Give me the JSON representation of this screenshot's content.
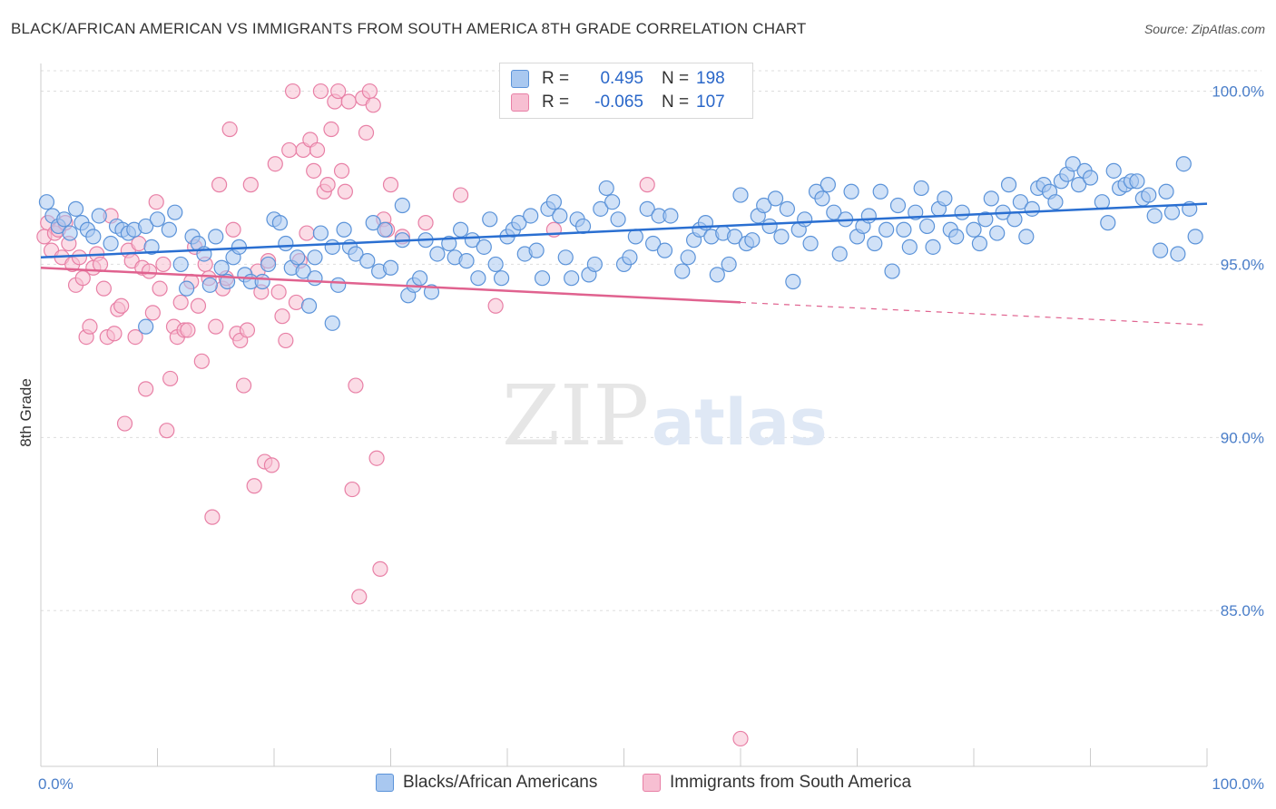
{
  "header": {
    "title": "BLACK/AFRICAN AMERICAN VS IMMIGRANTS FROM SOUTH AMERICA 8TH GRADE CORRELATION CHART",
    "source": "Source: ZipAtlas.com"
  },
  "watermark": {
    "zip": "ZIP",
    "atlas": "atlas"
  },
  "legend": {
    "rows": [
      {
        "r_label": "R =",
        "r_value": "0.495",
        "n_label": "N =",
        "n_value": "198"
      },
      {
        "r_label": "R =",
        "r_value": "-0.065",
        "n_label": "N =",
        "n_value": "107"
      }
    ]
  },
  "bottom_legend": [
    "Blacks/African Americans",
    "Immigrants from South America"
  ],
  "colors": {
    "blue_fill": "#a9c8f0",
    "blue_stroke": "#5b93d9",
    "blue_line": "#2a6fd1",
    "pink_fill": "#f7bfd2",
    "pink_stroke": "#e880a6",
    "pink_line": "#e0628f",
    "grid": "#dddddd",
    "tick_text": "#4a7ec9"
  },
  "chart_data": {
    "type": "scatter",
    "title": "BLACK/AFRICAN AMERICAN VS IMMIGRANTS FROM SOUTH AMERICA 8TH GRADE CORRELATION CHART",
    "ylabel": "8th Grade",
    "xlabel": "",
    "xlim": [
      0,
      100
    ],
    "ylim": [
      80.5,
      100.8
    ],
    "x_tick_labels": [
      "0.0%",
      "100.0%"
    ],
    "y_ticks": [
      85,
      90,
      95,
      100
    ],
    "y_tick_labels": [
      "85.0%",
      "90.0%",
      "95.0%",
      "100.0%"
    ],
    "grid": true,
    "series": [
      {
        "name": "Blacks/African Americans",
        "r": 0.495,
        "n": 198,
        "trend": {
          "x": [
            0,
            100
          ],
          "y": [
            95.2,
            96.75
          ]
        },
        "points": [
          [
            0.5,
            96.8
          ],
          [
            1,
            96.4
          ],
          [
            1.5,
            96.1
          ],
          [
            2,
            96.3
          ],
          [
            2.5,
            95.9
          ],
          [
            3,
            96.6
          ],
          [
            3.5,
            96.2
          ],
          [
            4,
            96.0
          ],
          [
            4.5,
            95.8
          ],
          [
            5,
            96.4
          ],
          [
            6,
            95.6
          ],
          [
            6.5,
            96.1
          ],
          [
            7,
            96.0
          ],
          [
            7.5,
            95.9
          ],
          [
            8,
            96.0
          ],
          [
            9,
            96.1
          ],
          [
            9,
            93.2
          ],
          [
            9.5,
            95.5
          ],
          [
            10,
            96.3
          ],
          [
            11,
            96.0
          ],
          [
            11.5,
            96.5
          ],
          [
            12,
            95.0
          ],
          [
            12.5,
            94.3
          ],
          [
            13,
            95.8
          ],
          [
            13.5,
            95.6
          ],
          [
            14,
            95.3
          ],
          [
            14.5,
            94.4
          ],
          [
            15,
            95.8
          ],
          [
            15.5,
            94.9
          ],
          [
            16,
            94.5
          ],
          [
            16.5,
            95.2
          ],
          [
            17,
            95.5
          ],
          [
            17.5,
            94.7
          ],
          [
            18,
            94.5
          ],
          [
            19,
            94.5
          ],
          [
            19.5,
            95.0
          ],
          [
            20,
            96.3
          ],
          [
            20.5,
            96.2
          ],
          [
            21,
            95.6
          ],
          [
            21.5,
            94.9
          ],
          [
            22,
            95.2
          ],
          [
            22.5,
            94.8
          ],
          [
            23,
            93.8
          ],
          [
            23.5,
            94.6
          ],
          [
            23.5,
            95.2
          ],
          [
            24,
            95.9
          ],
          [
            25,
            95.5
          ],
          [
            25,
            93.3
          ],
          [
            25.5,
            94.4
          ],
          [
            26,
            96.0
          ],
          [
            26.5,
            95.5
          ],
          [
            27,
            95.3
          ],
          [
            28,
            95.1
          ],
          [
            28.5,
            96.2
          ],
          [
            29,
            94.8
          ],
          [
            29.5,
            96.0
          ],
          [
            30,
            94.9
          ],
          [
            31,
            95.7
          ],
          [
            31,
            96.7
          ],
          [
            31.5,
            94.1
          ],
          [
            32,
            94.4
          ],
          [
            32.5,
            94.6
          ],
          [
            33,
            95.7
          ],
          [
            33.5,
            94.2
          ],
          [
            34,
            95.3
          ],
          [
            35,
            95.6
          ],
          [
            35.5,
            95.2
          ],
          [
            36,
            96.0
          ],
          [
            36.5,
            95.1
          ],
          [
            37,
            95.7
          ],
          [
            37.5,
            94.6
          ],
          [
            38,
            95.5
          ],
          [
            38.5,
            96.3
          ],
          [
            39,
            95.0
          ],
          [
            39.5,
            94.6
          ],
          [
            40,
            95.8
          ],
          [
            40.5,
            96.0
          ],
          [
            41,
            96.2
          ],
          [
            41.5,
            95.3
          ],
          [
            42,
            96.4
          ],
          [
            42.5,
            95.4
          ],
          [
            43,
            94.6
          ],
          [
            43.5,
            96.6
          ],
          [
            44,
            96.8
          ],
          [
            44.5,
            96.4
          ],
          [
            45,
            95.2
          ],
          [
            45.5,
            94.6
          ],
          [
            46,
            96.3
          ],
          [
            46.5,
            96.1
          ],
          [
            47,
            94.7
          ],
          [
            47.5,
            95.0
          ],
          [
            48,
            96.6
          ],
          [
            48.5,
            97.2
          ],
          [
            49,
            96.8
          ],
          [
            49.5,
            96.3
          ],
          [
            50,
            95.0
          ],
          [
            50.5,
            95.2
          ],
          [
            51,
            95.8
          ],
          [
            52,
            96.6
          ],
          [
            52.5,
            95.6
          ],
          [
            53,
            96.4
          ],
          [
            53.5,
            95.4
          ],
          [
            54,
            96.4
          ],
          [
            55,
            94.8
          ],
          [
            55.5,
            95.2
          ],
          [
            56,
            95.7
          ],
          [
            56.5,
            96.0
          ],
          [
            57,
            96.2
          ],
          [
            57.5,
            95.8
          ],
          [
            58,
            94.7
          ],
          [
            58.5,
            95.9
          ],
          [
            59,
            95.0
          ],
          [
            59.5,
            95.8
          ],
          [
            60,
            97.0
          ],
          [
            60.5,
            95.6
          ],
          [
            61,
            95.7
          ],
          [
            61.5,
            96.4
          ],
          [
            62,
            96.7
          ],
          [
            62.5,
            96.1
          ],
          [
            63,
            96.9
          ],
          [
            63.5,
            95.8
          ],
          [
            64,
            96.6
          ],
          [
            64.5,
            94.5
          ],
          [
            65,
            96.0
          ],
          [
            65.5,
            96.3
          ],
          [
            66,
            95.6
          ],
          [
            66.5,
            97.1
          ],
          [
            67,
            96.9
          ],
          [
            67.5,
            97.3
          ],
          [
            68,
            96.5
          ],
          [
            68.5,
            95.3
          ],
          [
            69,
            96.3
          ],
          [
            69.5,
            97.1
          ],
          [
            70,
            95.8
          ],
          [
            70.5,
            96.1
          ],
          [
            71,
            96.4
          ],
          [
            71.5,
            95.6
          ],
          [
            72,
            97.1
          ],
          [
            72.5,
            96.0
          ],
          [
            73,
            94.8
          ],
          [
            73.5,
            96.7
          ],
          [
            74,
            96.0
          ],
          [
            74.5,
            95.5
          ],
          [
            75,
            96.5
          ],
          [
            75.5,
            97.2
          ],
          [
            76,
            96.1
          ],
          [
            76.5,
            95.5
          ],
          [
            77,
            96.6
          ],
          [
            77.5,
            96.9
          ],
          [
            78,
            96.0
          ],
          [
            78.5,
            95.8
          ],
          [
            79,
            96.5
          ],
          [
            80,
            96.0
          ],
          [
            80.5,
            95.6
          ],
          [
            81,
            96.3
          ],
          [
            81.5,
            96.9
          ],
          [
            82,
            95.9
          ],
          [
            82.5,
            96.5
          ],
          [
            83,
            97.3
          ],
          [
            83.5,
            96.3
          ],
          [
            84,
            96.8
          ],
          [
            84.5,
            95.8
          ],
          [
            85,
            96.6
          ],
          [
            85.5,
            97.2
          ],
          [
            86,
            97.3
          ],
          [
            86.5,
            97.1
          ],
          [
            87,
            96.8
          ],
          [
            87.5,
            97.4
          ],
          [
            88,
            97.6
          ],
          [
            88.5,
            97.9
          ],
          [
            89,
            97.3
          ],
          [
            89.5,
            97.7
          ],
          [
            90,
            97.5
          ],
          [
            91,
            96.8
          ],
          [
            91.5,
            96.2
          ],
          [
            92,
            97.7
          ],
          [
            92.5,
            97.2
          ],
          [
            93,
            97.3
          ],
          [
            93.5,
            97.4
          ],
          [
            94,
            97.4
          ],
          [
            94.5,
            96.9
          ],
          [
            95,
            97.0
          ],
          [
            95.5,
            96.4
          ],
          [
            96,
            95.4
          ],
          [
            96.5,
            97.1
          ],
          [
            97,
            96.5
          ],
          [
            97.5,
            95.3
          ],
          [
            98,
            97.9
          ],
          [
            98.5,
            96.6
          ],
          [
            99,
            95.8
          ]
        ]
      },
      {
        "name": "Immigrants from South America",
        "r": -0.065,
        "n": 107,
        "trend": {
          "x": [
            0,
            60
          ],
          "y": [
            94.9,
            93.9
          ]
        },
        "trend_dashed": {
          "x": [
            60,
            100
          ],
          "y": [
            93.9,
            93.25
          ]
        },
        "points": [
          [
            0.3,
            95.8
          ],
          [
            0.6,
            96.2
          ],
          [
            0.9,
            95.4
          ],
          [
            1.2,
            95.9
          ],
          [
            1.5,
            96.0
          ],
          [
            1.8,
            95.2
          ],
          [
            2.1,
            96.2
          ],
          [
            2.4,
            95.6
          ],
          [
            2.7,
            95.0
          ],
          [
            3,
            94.4
          ],
          [
            3.3,
            95.2
          ],
          [
            3.6,
            94.6
          ],
          [
            3.9,
            92.9
          ],
          [
            4.2,
            93.2
          ],
          [
            4.5,
            94.9
          ],
          [
            4.8,
            95.3
          ],
          [
            5.1,
            95.0
          ],
          [
            5.4,
            94.3
          ],
          [
            5.7,
            92.9
          ],
          [
            6,
            96.4
          ],
          [
            6.3,
            93.0
          ],
          [
            6.6,
            93.7
          ],
          [
            6.9,
            93.8
          ],
          [
            7.2,
            90.4
          ],
          [
            7.5,
            95.4
          ],
          [
            7.8,
            95.1
          ],
          [
            8.1,
            92.9
          ],
          [
            8.4,
            95.6
          ],
          [
            8.7,
            94.9
          ],
          [
            9,
            91.4
          ],
          [
            9.3,
            94.8
          ],
          [
            9.6,
            93.6
          ],
          [
            9.9,
            96.8
          ],
          [
            10.2,
            94.3
          ],
          [
            10.5,
            95.0
          ],
          [
            10.8,
            90.2
          ],
          [
            11.1,
            91.7
          ],
          [
            11.4,
            93.2
          ],
          [
            11.7,
            92.9
          ],
          [
            12,
            93.9
          ],
          [
            12.3,
            93.1
          ],
          [
            12.6,
            93.1
          ],
          [
            12.9,
            94.5
          ],
          [
            13.2,
            95.5
          ],
          [
            13.5,
            93.8
          ],
          [
            13.8,
            92.2
          ],
          [
            14.1,
            95.0
          ],
          [
            14.4,
            94.6
          ],
          [
            14.7,
            87.7
          ],
          [
            15,
            93.2
          ],
          [
            15.3,
            97.3
          ],
          [
            15.6,
            94.3
          ],
          [
            15.9,
            94.6
          ],
          [
            16.2,
            98.9
          ],
          [
            16.5,
            96.0
          ],
          [
            16.8,
            93.0
          ],
          [
            17.1,
            92.8
          ],
          [
            17.4,
            91.5
          ],
          [
            17.7,
            93.1
          ],
          [
            18,
            97.3
          ],
          [
            18.3,
            88.6
          ],
          [
            18.6,
            94.8
          ],
          [
            18.9,
            94.2
          ],
          [
            19.2,
            89.3
          ],
          [
            19.5,
            95.1
          ],
          [
            19.8,
            89.2
          ],
          [
            20.1,
            97.9
          ],
          [
            20.4,
            94.2
          ],
          [
            20.7,
            93.5
          ],
          [
            21,
            92.8
          ],
          [
            21.3,
            98.3
          ],
          [
            21.6,
            100.0
          ],
          [
            21.9,
            93.9
          ],
          [
            22.2,
            95.1
          ],
          [
            22.5,
            98.3
          ],
          [
            22.8,
            95.9
          ],
          [
            23.1,
            98.6
          ],
          [
            23.4,
            97.7
          ],
          [
            23.7,
            98.3
          ],
          [
            24,
            100.0
          ],
          [
            24.3,
            97.1
          ],
          [
            24.6,
            97.3
          ],
          [
            24.9,
            98.9
          ],
          [
            25.2,
            99.7
          ],
          [
            25.5,
            100.0
          ],
          [
            25.8,
            97.7
          ],
          [
            26.1,
            97.1
          ],
          [
            26.4,
            99.7
          ],
          [
            26.7,
            88.5
          ],
          [
            27,
            91.5
          ],
          [
            27.3,
            85.4
          ],
          [
            27.6,
            99.8
          ],
          [
            27.9,
            98.8
          ],
          [
            28.2,
            100.0
          ],
          [
            28.5,
            99.6
          ],
          [
            28.8,
            89.4
          ],
          [
            29.1,
            86.2
          ],
          [
            29.4,
            96.3
          ],
          [
            29.7,
            96.0
          ],
          [
            30,
            97.3
          ],
          [
            31,
            95.8
          ],
          [
            33,
            96.2
          ],
          [
            36,
            97.0
          ],
          [
            39,
            93.8
          ],
          [
            44,
            96.0
          ],
          [
            52,
            97.3
          ],
          [
            60,
            81.3
          ]
        ]
      }
    ]
  }
}
